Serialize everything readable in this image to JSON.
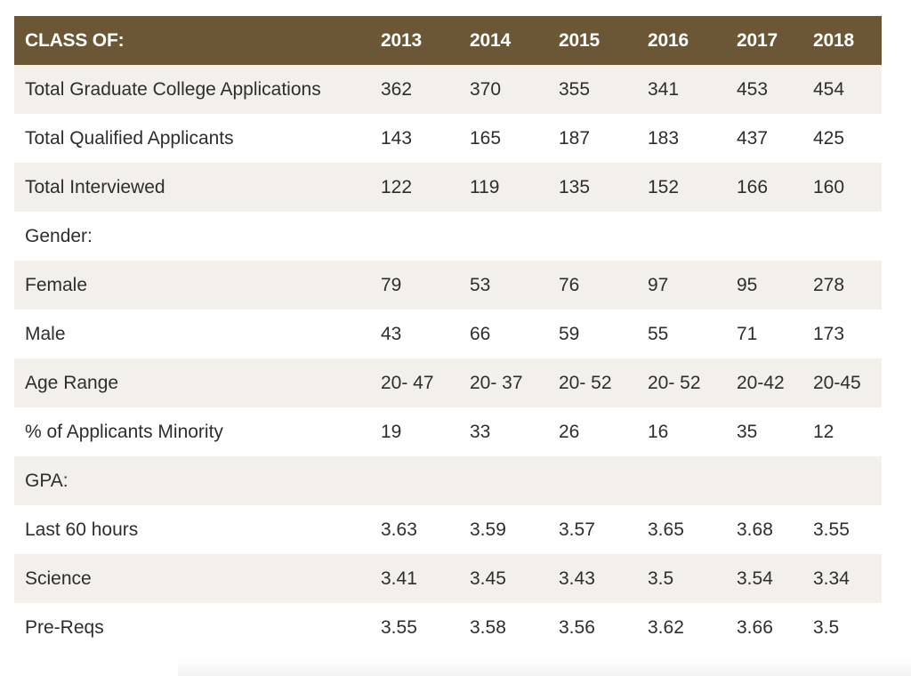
{
  "table": {
    "header": {
      "label": "CLASS OF:",
      "years": [
        "2013",
        "2014",
        "2015",
        "2016",
        "2017",
        "2018"
      ]
    },
    "rows": [
      {
        "label": "Total Graduate College Applications",
        "values": [
          "362",
          "370",
          "355",
          "341",
          "453",
          "454"
        ],
        "shaded": true
      },
      {
        "label": "Total Qualified Applicants",
        "values": [
          "143",
          "165",
          "187",
          "183",
          "437",
          "425"
        ],
        "shaded": false
      },
      {
        "label": "Total Interviewed",
        "values": [
          "122",
          "119",
          "135",
          "152",
          "166",
          "160"
        ],
        "shaded": true
      },
      {
        "label": "Gender:",
        "values": [
          "",
          "",
          "",
          "",
          "",
          ""
        ],
        "shaded": false
      },
      {
        "label": "Female",
        "values": [
          "79",
          "53",
          "76",
          "97",
          "95",
          "278"
        ],
        "shaded": true
      },
      {
        "label": "Male",
        "values": [
          "43",
          "66",
          "59",
          "55",
          "71",
          "173"
        ],
        "shaded": false
      },
      {
        "label": "Age Range",
        "values": [
          "20- 47",
          "20- 37",
          "20- 52",
          "20- 52",
          "20-42",
          "20-45"
        ],
        "shaded": true
      },
      {
        "label": "% of Applicants Minority",
        "values": [
          "19",
          "33",
          "26",
          "16",
          "35",
          "12"
        ],
        "shaded": false
      },
      {
        "label": "GPA:",
        "values": [
          "",
          "",
          "",
          "",
          "",
          ""
        ],
        "shaded": true
      },
      {
        "label": "Last 60 hours",
        "values": [
          "3.63",
          "3.59",
          "3.57",
          "3.65",
          "3.68",
          "3.55"
        ],
        "shaded": false
      },
      {
        "label": "Science",
        "values": [
          "3.41",
          "3.45",
          "3.43",
          "3.5",
          "3.54",
          "3.34"
        ],
        "shaded": true
      },
      {
        "label": "Pre-Reqs",
        "values": [
          "3.55",
          "3.58",
          "3.56",
          "3.62",
          "3.66",
          "3.5"
        ],
        "shaded": false
      }
    ]
  },
  "colors": {
    "header_bg": "#6b5736",
    "header_text": "#ffffff",
    "row_shade": "#f3f0eb",
    "row_plain": "#ffffff",
    "text": "#2e2e2e"
  }
}
